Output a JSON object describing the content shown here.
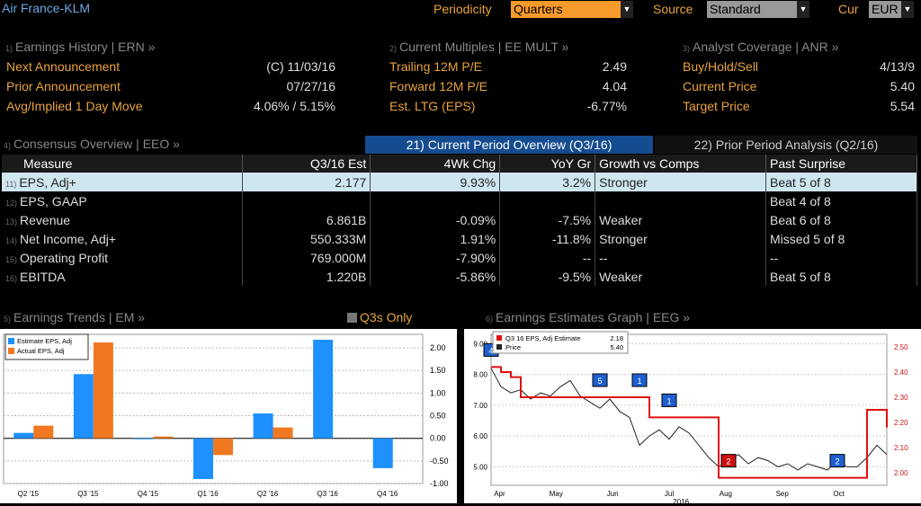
{
  "header": {
    "security": "Air France-KLM",
    "periodicity_label": "Periodicity",
    "periodicity_value": "Quarters",
    "source_label": "Source",
    "source_value": "Standard",
    "cur_label": "Cur",
    "cur_value": "EUR"
  },
  "earnings_history": {
    "num": "1)",
    "title": "Earnings History | ERN »",
    "rows": [
      {
        "label": "Next Announcement",
        "value": "(C)  11/03/16"
      },
      {
        "label": "Prior Announcement",
        "value": "07/27/16"
      },
      {
        "label": "Avg/Implied 1 Day Move",
        "value": "4.06% / 5.15%"
      }
    ]
  },
  "current_multiples": {
    "num": "2)",
    "title": "Current Multiples | EE MULT »",
    "rows": [
      {
        "label": "Trailing 12M P/E",
        "value": "2.49"
      },
      {
        "label": "Forward 12M P/E",
        "value": "4.04"
      },
      {
        "label": "Est. LTG (EPS)",
        "value": "-6.77%"
      }
    ]
  },
  "analyst_coverage": {
    "num": "3)",
    "title": "Analyst Coverage | ANR »",
    "rows": [
      {
        "label": "Buy/Hold/Sell",
        "value": "4/13/9"
      },
      {
        "label": "Current Price",
        "value": "5.40"
      },
      {
        "label": "Target Price",
        "value": "5.54"
      }
    ]
  },
  "consensus": {
    "num": "4)",
    "title": "Consensus Overview | EEO »",
    "tab_current": "21) Current Period Overview (Q3/16)",
    "tab_prior": "22) Prior Period Analysis (Q2/16)",
    "columns": [
      "Measure",
      "Q3/16 Est",
      "4Wk Chg",
      "YoY Gr",
      "Growth vs Comps",
      "Past Surprise"
    ],
    "rows": [
      {
        "num": "11)",
        "measure": "EPS, Adj+",
        "est": "2.177",
        "chg": "9.93%",
        "yoy": "3.2%",
        "comps": "Stronger",
        "surprise": "Beat 5 of 8"
      },
      {
        "num": "12)",
        "measure": "EPS, GAAP",
        "est": "",
        "chg": "",
        "yoy": "",
        "comps": "",
        "surprise": "Beat 4 of 8"
      },
      {
        "num": "13)",
        "measure": "Revenue",
        "est": "6.861B",
        "chg": "-0.09%",
        "yoy": "-7.5%",
        "comps": "Weaker",
        "surprise": "Beat 6 of 8"
      },
      {
        "num": "14)",
        "measure": "Net Income, Adj+",
        "est": "550.333M",
        "chg": "1.91%",
        "yoy": "-11.8%",
        "comps": "Stronger",
        "surprise": "Missed 5 of 8"
      },
      {
        "num": "15)",
        "measure": "Operating Profit",
        "est": "769.000M",
        "chg": "-7.90%",
        "yoy": "--",
        "comps": "--",
        "surprise": "--"
      },
      {
        "num": "16)",
        "measure": "EBITDA",
        "est": "1.220B",
        "chg": "-5.86%",
        "yoy": "-9.5%",
        "comps": "Weaker",
        "surprise": "Beat 5 of 8"
      }
    ]
  },
  "trends": {
    "num": "5)",
    "title": "Earnings Trends | EM »",
    "toggle_label": "Q3s Only"
  },
  "graph": {
    "num": "6)",
    "title": "Earnings Estimates Graph | EEG »"
  },
  "chart_data": [
    {
      "type": "bar",
      "categories": [
        "Q2 '15",
        "Q3 '15",
        "Q4 '15",
        "Q1 '16",
        "Q2 '16",
        "Q3 '16",
        "Q4 '16"
      ],
      "series": [
        {
          "name": "Estimate EPS, Adj",
          "color": "#1e90ff",
          "values": [
            0.12,
            1.42,
            -0.02,
            -0.9,
            0.55,
            2.18,
            -0.66
          ]
        },
        {
          "name": "Actual EPS, Adj",
          "color": "#f07820",
          "values": [
            0.28,
            2.12,
            0.04,
            -0.37,
            0.24,
            null,
            null
          ]
        }
      ],
      "ylim": [
        -1.0,
        2.3
      ],
      "yticks": [
        "2.00",
        "1.50",
        "1.00",
        "0.50",
        "0.00",
        "-0.50",
        "-1.00"
      ],
      "ytick_values": [
        2.0,
        1.5,
        1.0,
        0.5,
        0.0,
        -0.5,
        -1.0
      ]
    },
    {
      "type": "line",
      "x_labels": [
        "Apr",
        "May",
        "Jun",
        "Jul",
        "Aug",
        "Sep",
        "Oct"
      ],
      "year_label": "2016",
      "series": [
        {
          "name": "Q3 16 EPS, Adj Estimate",
          "last": "2.18",
          "color": "#e01010",
          "axis": "right",
          "values": [
            2.42,
            2.4,
            2.38,
            2.3,
            2.3,
            2.3,
            2.3,
            2.3,
            2.3,
            2.3,
            2.3,
            2.3,
            2.3,
            2.3,
            2.3,
            2.3,
            2.22,
            2.22,
            2.22,
            2.22,
            2.22,
            2.22,
            2.22,
            1.98,
            1.98,
            1.98,
            1.98,
            1.98,
            1.98,
            1.98,
            1.98,
            1.98,
            1.98,
            1.98,
            1.98,
            1.98,
            1.98,
            1.98,
            2.25,
            2.25,
            2.18
          ]
        },
        {
          "name": "Price",
          "last": "5.40",
          "color": "#222222",
          "axis": "left",
          "values": [
            8.2,
            7.6,
            7.4,
            7.5,
            7.2,
            7.4,
            7.3,
            7.6,
            7.8,
            7.3,
            7.1,
            6.9,
            7.2,
            6.8,
            6.6,
            5.7,
            6.0,
            6.2,
            5.9,
            6.3,
            6.1,
            5.7,
            5.3,
            5.0,
            5.2,
            5.4,
            5.1,
            5.3,
            5.2,
            5.0,
            5.1,
            4.9,
            5.1,
            5.0,
            4.9,
            5.2,
            5.0,
            5.0,
            5.3,
            5.7,
            5.4
          ]
        }
      ],
      "left_ticks": [
        "9.00",
        "8.00",
        "7.00",
        "6.00",
        "5.00"
      ],
      "left_tick_values": [
        9,
        8,
        7,
        6,
        5
      ],
      "right_ticks": [
        "2.50",
        "2.40",
        "2.30",
        "2.20",
        "2.10",
        "2.00"
      ],
      "right_tick_values": [
        2.5,
        2.4,
        2.3,
        2.2,
        2.1,
        2.0
      ],
      "markers": [
        {
          "label": "4",
          "color": "#1e5fd0",
          "idx": 0
        },
        {
          "label": "5",
          "color": "#1e5fd0",
          "idx": 11
        },
        {
          "label": "1",
          "color": "#1e5fd0",
          "idx": 15
        },
        {
          "label": "1",
          "color": "#1e5fd0",
          "idx": 18
        },
        {
          "label": "2",
          "color": "#d01010",
          "idx": 24
        },
        {
          "label": "2",
          "color": "#1e5fd0",
          "idx": 35
        }
      ]
    }
  ]
}
